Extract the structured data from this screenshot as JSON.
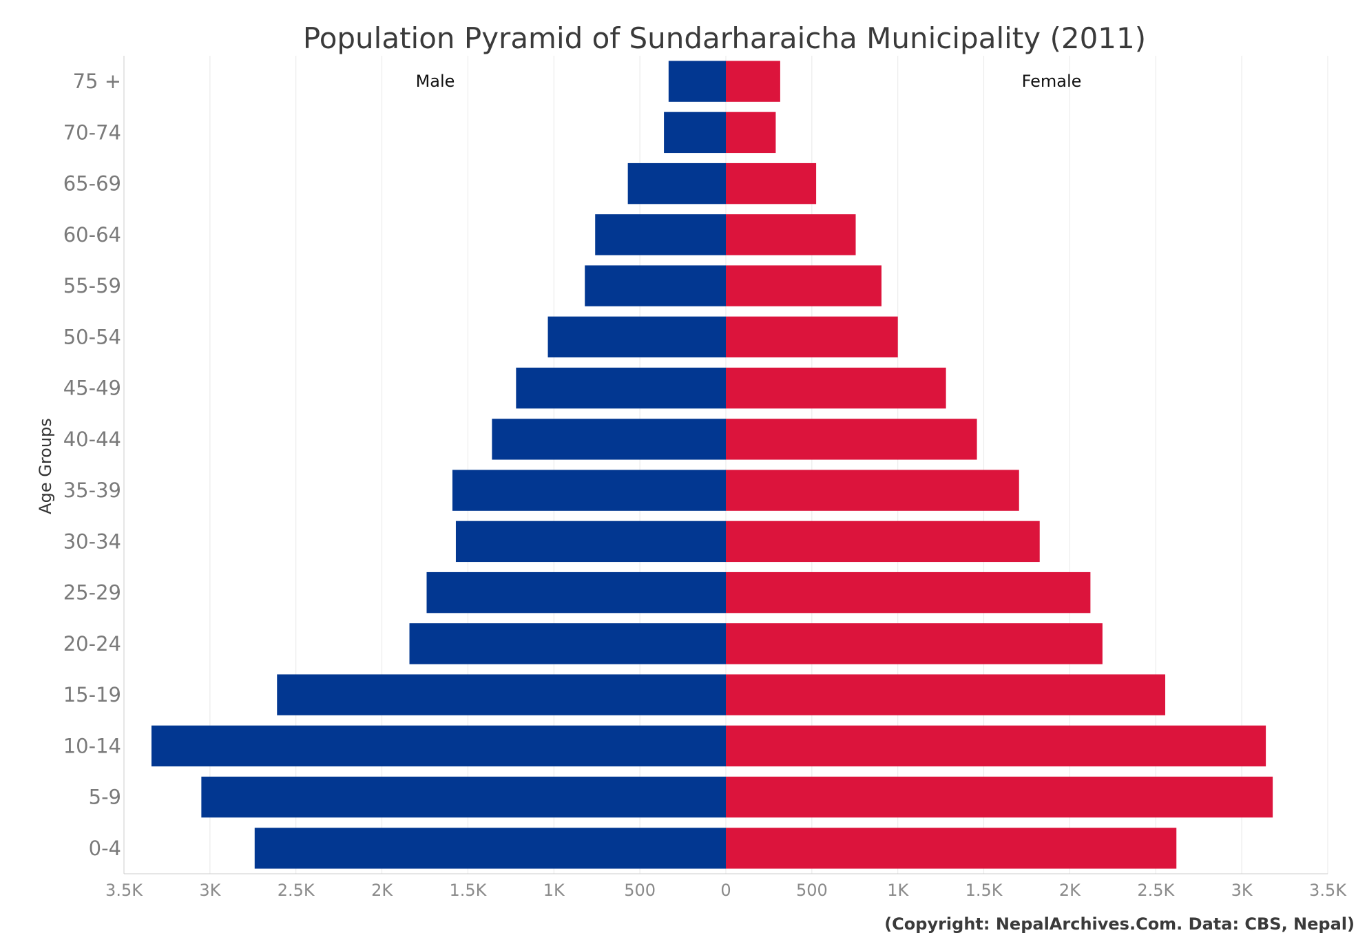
{
  "chart_data": {
    "type": "bar",
    "orientation": "horizontal",
    "title": "Population Pyramid of Sundarharaicha Municipality (2011)",
    "ylabel": "Age Groups",
    "xlabel": "",
    "categories": [
      "75 +",
      "70-74",
      "65-69",
      "60-64",
      "55-59",
      "50-54",
      "45-49",
      "40-44",
      "35-39",
      "30-34",
      "25-29",
      "20-24",
      "15-19",
      "10-14",
      "5-9",
      "0-4"
    ],
    "series": [
      {
        "name": "Male",
        "color": "#023791",
        "values": [
          -333,
          -360,
          -570,
          -760,
          -820,
          -1035,
          -1220,
          -1360,
          -1590,
          -1570,
          -1740,
          -1840,
          -2610,
          -3340,
          -3050,
          -2740
        ]
      },
      {
        "name": "Female",
        "color": "#dc143c",
        "values": [
          316,
          290,
          525,
          755,
          905,
          1000,
          1280,
          1460,
          1705,
          1825,
          2120,
          2190,
          2555,
          3140,
          3180,
          2620
        ]
      }
    ],
    "xlim": [
      -3500,
      3500
    ],
    "xticks": [
      -3500,
      -3000,
      -2500,
      -2000,
      -1500,
      -1000,
      -500,
      0,
      500,
      1000,
      1500,
      2000,
      2500,
      3000,
      3500
    ],
    "xtick_labels": [
      "3.5K",
      "3K",
      "2.5K",
      "2K",
      "1.5K",
      "1K",
      "500",
      "0",
      "500",
      "1K",
      "1.5K",
      "2K",
      "2.5K",
      "3K",
      "3.5K"
    ],
    "legend_position": "inside-top",
    "grid": true,
    "credit": "(Copyright: NepalArchives.Com. Data: CBS, Nepal)"
  }
}
